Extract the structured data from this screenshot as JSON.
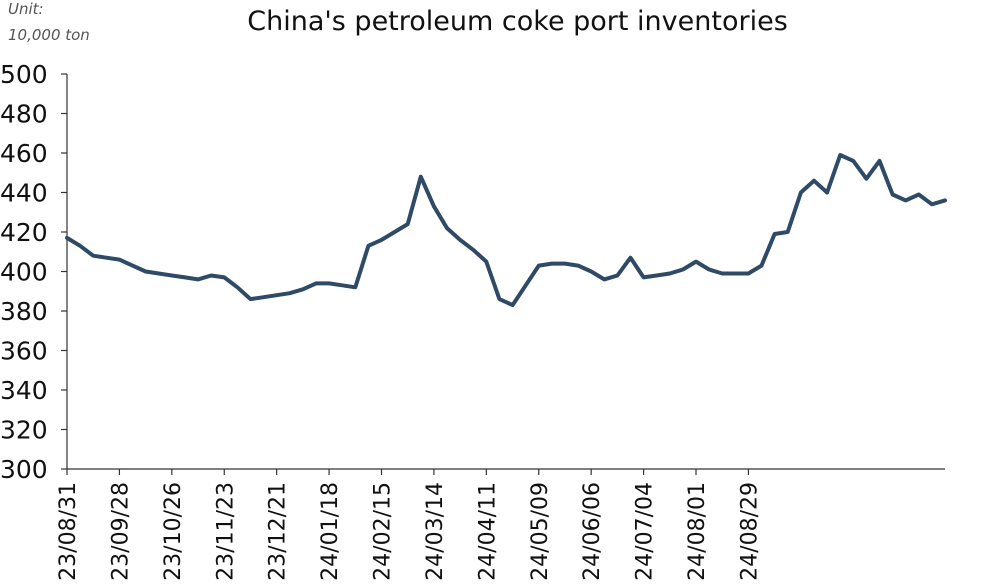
{
  "chart_data": {
    "type": "line",
    "title": "China's petroleum coke port inventories",
    "unit_line1": "Unit:",
    "unit_line2": "10,000 ton",
    "xlabel": "",
    "ylabel": "",
    "ylim": [
      300,
      500
    ],
    "yticks": [
      300,
      320,
      340,
      360,
      380,
      400,
      420,
      440,
      460,
      480,
      500
    ],
    "x_tick_labels": [
      "23/08/31",
      "23/09/28",
      "23/10/26",
      "23/11/23",
      "23/12/21",
      "24/01/18",
      "24/02/15",
      "24/03/14",
      "24/04/11",
      "24/05/09",
      "24/06/06",
      "24/07/04",
      "24/08/01",
      "24/08/29"
    ],
    "grid": false,
    "legend": "none",
    "line_color": "#2f4a66",
    "series": [
      {
        "values": [
          417,
          413,
          408,
          407,
          406,
          403,
          400,
          399,
          398,
          397,
          396,
          398,
          397,
          392,
          386,
          387,
          388,
          389,
          391,
          394,
          394,
          393,
          392,
          413,
          416,
          420,
          424,
          448,
          433,
          422,
          416,
          411,
          405,
          386,
          383,
          393,
          403,
          404,
          404,
          403,
          400,
          396,
          398,
          407,
          397,
          398,
          399,
          401,
          405,
          401,
          399,
          399,
          399,
          403,
          419,
          420,
          440,
          446,
          440,
          459,
          456,
          447,
          456,
          439,
          436,
          439,
          434,
          436
        ]
      }
    ]
  }
}
